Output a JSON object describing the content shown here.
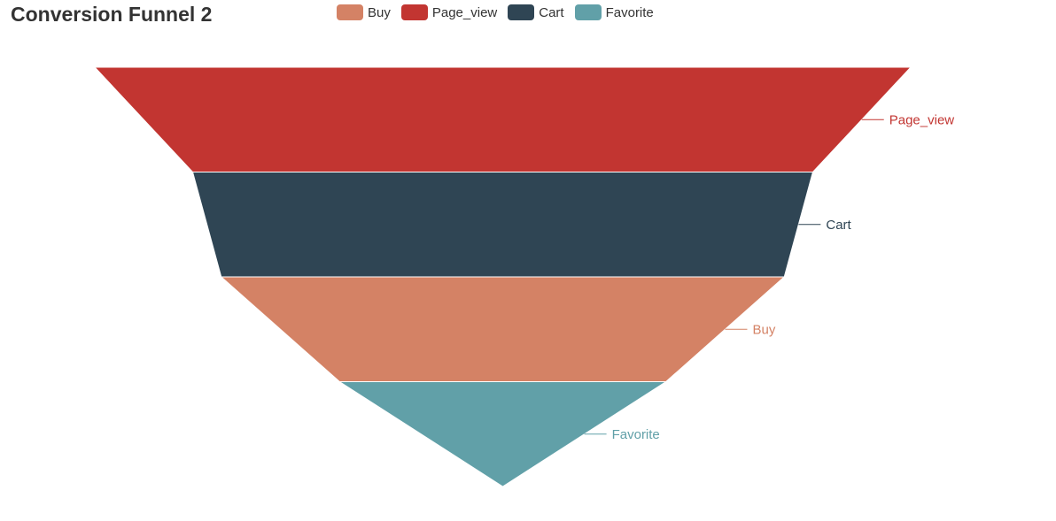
{
  "chart_data": {
    "type": "funnel",
    "title": "Conversion Funnel 2",
    "legend": {
      "placement": "top-center",
      "items": [
        {
          "name": "Buy",
          "color": "#d48265"
        },
        {
          "name": "Page_view",
          "color": "#c23531"
        },
        {
          "name": "Cart",
          "color": "#2f4554"
        },
        {
          "name": "Favorite",
          "color": "#61a0a8"
        }
      ]
    },
    "stages": [
      {
        "name": "Page_view",
        "value": 100,
        "color": "#c23531"
      },
      {
        "name": "Cart",
        "value": 76,
        "color": "#2f4554"
      },
      {
        "name": "Buy",
        "value": 69,
        "color": "#d48265"
      },
      {
        "name": "Favorite",
        "value": 40,
        "color": "#61a0a8"
      }
    ],
    "sort": "descending"
  }
}
